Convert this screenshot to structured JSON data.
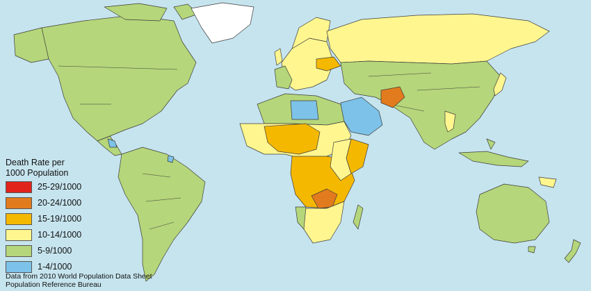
{
  "map": {
    "title_line1": "Death Rate per",
    "title_line2": "1000 Population",
    "legend": [
      {
        "label": "25-29/1000",
        "color": "#e0241c"
      },
      {
        "label": "20-24/1000",
        "color": "#e27b1d"
      },
      {
        "label": "15-19/1000",
        "color": "#f5b800"
      },
      {
        "label": "10-14/1000",
        "color": "#fff68f"
      },
      {
        "label": "5-9/1000",
        "color": "#b5d67a"
      },
      {
        "label": "1-4/1000",
        "color": "#7dc2e8"
      }
    ],
    "source_line1": "Data from 2010 World Population Data Sheet",
    "source_line2": "Population Reference Bureau",
    "colors": {
      "ocean": "#c6e4ee",
      "no_data": "#ffffff"
    }
  }
}
